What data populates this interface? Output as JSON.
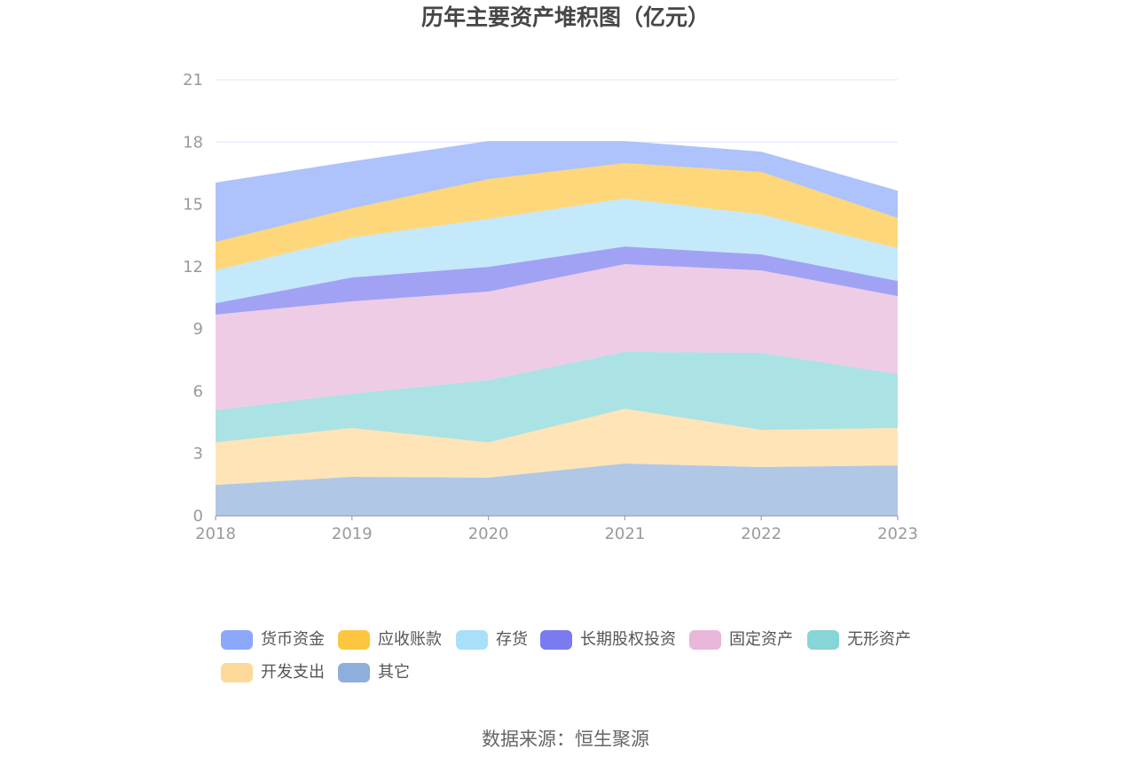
{
  "source": "数据来源：恒生聚源",
  "chart_data": {
    "type": "area",
    "stacked": true,
    "title": "历年主要资产堆积图（亿元）",
    "xlabel": "",
    "ylabel": "",
    "x": [
      "2018",
      "2019",
      "2020",
      "2021",
      "2022",
      "2023"
    ],
    "ylim": [
      0,
      21
    ],
    "yticks": [
      0,
      3,
      6,
      9,
      12,
      15,
      18,
      21
    ],
    "grid": true,
    "legend_position": "bottom",
    "series": [
      {
        "name": "货币资金",
        "color": "#8ba8fa",
        "values": [
          2.86,
          2.26,
          1.83,
          1.06,
          0.98,
          1.32
        ]
      },
      {
        "name": "应收账款",
        "color": "#fcc641",
        "values": [
          1.37,
          1.41,
          1.92,
          1.71,
          2.05,
          1.45
        ]
      },
      {
        "name": "存货",
        "color": "#a9e0f9",
        "values": [
          1.58,
          1.92,
          2.31,
          2.31,
          1.92,
          1.58
        ]
      },
      {
        "name": "长期股权投资",
        "color": "#7b7bf0",
        "values": [
          0.55,
          1.15,
          1.19,
          0.85,
          0.77,
          0.73
        ]
      },
      {
        "name": "固定资产",
        "color": "#e8b7da",
        "values": [
          4.61,
          4.44,
          4.27,
          4.22,
          3.97,
          3.75
        ]
      },
      {
        "name": "无形资产",
        "color": "#88d5d8",
        "values": [
          1.54,
          1.66,
          2.99,
          2.74,
          3.71,
          2.6
        ]
      },
      {
        "name": "开发支出",
        "color": "#fdd999",
        "values": [
          2.05,
          2.35,
          1.7,
          2.64,
          1.79,
          1.8
        ]
      },
      {
        "name": "其它",
        "color": "#8eafdc",
        "values": [
          1.49,
          1.88,
          1.84,
          2.52,
          2.35,
          2.43
        ]
      }
    ]
  }
}
